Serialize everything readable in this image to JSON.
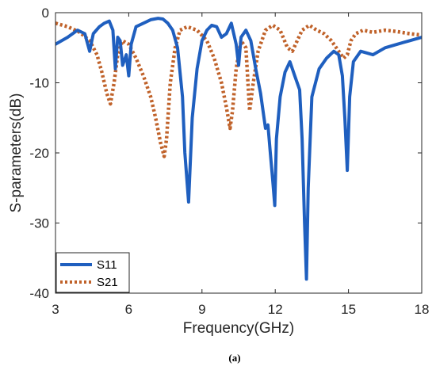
{
  "chart_data": {
    "type": "line",
    "xlabel": "Frequency(GHz)",
    "ylabel": "S-parameters(dB)",
    "xlim": [
      3,
      18
    ],
    "ylim": [
      -40,
      0
    ],
    "xticks": [
      3,
      6,
      9,
      12,
      15,
      18
    ],
    "yticks": [
      0,
      -10,
      -20,
      -30,
      -40
    ],
    "grid": false,
    "legend_position": "bottom-left",
    "caption": "(a)",
    "series": [
      {
        "name": "S11",
        "color": "#1f5fbf",
        "style": "solid",
        "x": [
          3.0,
          3.5,
          3.9,
          4.2,
          4.4,
          4.55,
          4.8,
          5.0,
          5.2,
          5.35,
          5.45,
          5.55,
          5.65,
          5.75,
          5.9,
          6.0,
          6.1,
          6.3,
          6.6,
          6.9,
          7.2,
          7.4,
          7.6,
          7.8,
          8.0,
          8.2,
          8.3,
          8.45,
          8.6,
          8.8,
          9.0,
          9.2,
          9.4,
          9.6,
          9.8,
          10.0,
          10.2,
          10.4,
          10.5,
          10.6,
          10.8,
          11.0,
          11.2,
          11.4,
          11.6,
          11.7,
          11.8,
          11.9,
          11.98,
          12.05,
          12.2,
          12.4,
          12.6,
          12.8,
          13.0,
          13.1,
          13.2,
          13.28,
          13.35,
          13.5,
          13.8,
          14.1,
          14.4,
          14.6,
          14.75,
          14.85,
          14.95,
          15.05,
          15.2,
          15.5,
          16.0,
          16.5,
          17.0,
          17.5,
          18.0
        ],
        "values": [
          -4.5,
          -3.5,
          -2.5,
          -3.0,
          -5.5,
          -3.0,
          -2.0,
          -1.5,
          -1.2,
          -2.5,
          -8.0,
          -3.5,
          -4.0,
          -7.5,
          -6.0,
          -9.0,
          -4.5,
          -2.0,
          -1.5,
          -1.0,
          -0.8,
          -0.9,
          -1.5,
          -2.5,
          -5.0,
          -12.0,
          -20.0,
          -27.0,
          -15.0,
          -8.0,
          -4.0,
          -2.5,
          -1.8,
          -2.0,
          -3.5,
          -3.0,
          -1.5,
          -4.5,
          -7.5,
          -3.5,
          -2.5,
          -4.0,
          -8.0,
          -11.5,
          -16.5,
          -16.0,
          -20.0,
          -24.0,
          -27.5,
          -18.0,
          -12.0,
          -8.5,
          -7.0,
          -9.0,
          -11.0,
          -18.0,
          -30.0,
          -38.0,
          -25.0,
          -12.0,
          -8.0,
          -6.5,
          -5.5,
          -6.0,
          -9.0,
          -15.0,
          -22.5,
          -12.0,
          -7.0,
          -5.5,
          -6.0,
          -5.0,
          -4.5,
          -4.0,
          -3.5
        ]
      },
      {
        "name": "S21",
        "color": "#c0622a",
        "style": "dotted",
        "x": [
          3.0,
          3.5,
          4.0,
          4.4,
          4.7,
          4.9,
          5.1,
          5.25,
          5.4,
          5.55,
          5.75,
          6.0,
          6.3,
          6.6,
          6.9,
          7.1,
          7.3,
          7.45,
          7.55,
          7.7,
          7.9,
          8.1,
          8.4,
          8.8,
          9.2,
          9.5,
          9.8,
          10.0,
          10.15,
          10.25,
          10.4,
          10.6,
          10.8,
          10.95,
          11.1,
          11.3,
          11.6,
          11.9,
          12.2,
          12.5,
          12.7,
          12.9,
          13.1,
          13.4,
          13.7,
          14.0,
          14.3,
          14.6,
          14.8,
          14.95,
          15.1,
          15.3,
          15.6,
          16.0,
          16.5,
          17.0,
          17.5,
          18.0
        ],
        "values": [
          -1.5,
          -2.0,
          -2.8,
          -4.0,
          -6.0,
          -8.5,
          -11.5,
          -13.0,
          -10.0,
          -6.0,
          -4.0,
          -4.5,
          -6.5,
          -9.0,
          -12.0,
          -15.0,
          -18.5,
          -20.5,
          -18.0,
          -10.0,
          -5.0,
          -2.5,
          -2.0,
          -2.5,
          -4.0,
          -6.5,
          -10.0,
          -13.5,
          -16.5,
          -14.0,
          -8.0,
          -4.0,
          -5.0,
          -14.0,
          -10.0,
          -5.5,
          -2.5,
          -1.8,
          -2.5,
          -5.0,
          -5.5,
          -4.0,
          -2.5,
          -1.8,
          -2.5,
          -3.0,
          -4.0,
          -5.5,
          -6.5,
          -6.0,
          -4.0,
          -3.0,
          -2.5,
          -2.8,
          -2.5,
          -2.7,
          -3.0,
          -3.2
        ]
      }
    ]
  }
}
